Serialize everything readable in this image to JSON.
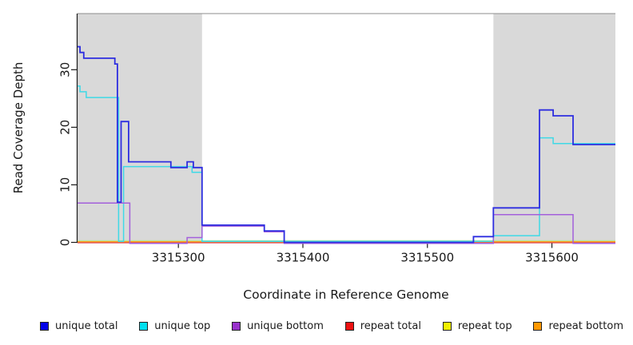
{
  "chart_data": {
    "type": "line",
    "step": true,
    "title": "",
    "xlabel": "Coordinate in Reference Genome",
    "ylabel": "Read Coverage Depth",
    "xlim": [
      3315219,
      3315651
    ],
    "ylim": [
      0,
      39.8
    ],
    "xticks": [
      3315300,
      3315400,
      3315500,
      3315600
    ],
    "yticks": [
      0,
      10,
      20,
      30
    ],
    "grid": false,
    "shade_color": "#d9d9d9",
    "shaded_regions": [
      {
        "from": 3315219,
        "to": 3315319
      },
      {
        "from": 3315553,
        "to": 3315651
      }
    ],
    "series": [
      {
        "name": "unique total",
        "color": "#0000e8",
        "line_color": "#2e2ee0",
        "points": [
          [
            3315219,
            34
          ],
          [
            3315221,
            33
          ],
          [
            3315224,
            32
          ],
          [
            3315249,
            31
          ],
          [
            3315251,
            7
          ],
          [
            3315254,
            21
          ],
          [
            3315260,
            14
          ],
          [
            3315294,
            13
          ],
          [
            3315307,
            14
          ],
          [
            3315312,
            13
          ],
          [
            3315319,
            3
          ],
          [
            3315369,
            2
          ],
          [
            3315385,
            0
          ],
          [
            3315537,
            1
          ],
          [
            3315553,
            6
          ],
          [
            3315590,
            23
          ],
          [
            3315601,
            22
          ],
          [
            3315617,
            17
          ]
        ]
      },
      {
        "name": "unique top",
        "color": "#00e0f0",
        "line_color": "#3fd9e6",
        "points": [
          [
            3315219,
            27
          ],
          [
            3315221,
            26
          ],
          [
            3315226,
            25
          ],
          [
            3315252,
            0
          ],
          [
            3315256,
            13
          ],
          [
            3315311,
            12
          ],
          [
            3315319,
            0
          ],
          [
            3315553,
            1
          ],
          [
            3315590,
            18
          ],
          [
            3315601,
            17
          ]
        ]
      },
      {
        "name": "unique bottom",
        "color": "#9932cc",
        "line_color": "#a35fdb",
        "points": [
          [
            3315219,
            7
          ],
          [
            3315261,
            0
          ],
          [
            3315307,
            1
          ],
          [
            3315319,
            3
          ],
          [
            3315369,
            2
          ],
          [
            3315385,
            0
          ],
          [
            3315553,
            5
          ],
          [
            3315617,
            0
          ]
        ]
      },
      {
        "name": "repeat total",
        "color": "#ee1111",
        "line_color": "#d63a55",
        "points": [
          [
            3315219,
            0
          ]
        ]
      },
      {
        "name": "repeat top",
        "color": "#f0f000",
        "line_color": "#b9e39a",
        "points": [
          [
            3315219,
            0
          ]
        ]
      },
      {
        "name": "repeat bottom",
        "color": "#ff9900",
        "line_color": "#ff9d1e",
        "points": [
          [
            3315219,
            0
          ]
        ]
      }
    ],
    "legend": [
      {
        "label": "unique total",
        "color": "#0000e8"
      },
      {
        "label": "unique top",
        "color": "#00e0f0"
      },
      {
        "label": "unique bottom",
        "color": "#9932cc"
      },
      {
        "label": "repeat total",
        "color": "#ee1111"
      },
      {
        "label": "repeat top",
        "color": "#f0f000"
      },
      {
        "label": "repeat bottom",
        "color": "#ff9900"
      }
    ],
    "legend_position": "bottom"
  }
}
